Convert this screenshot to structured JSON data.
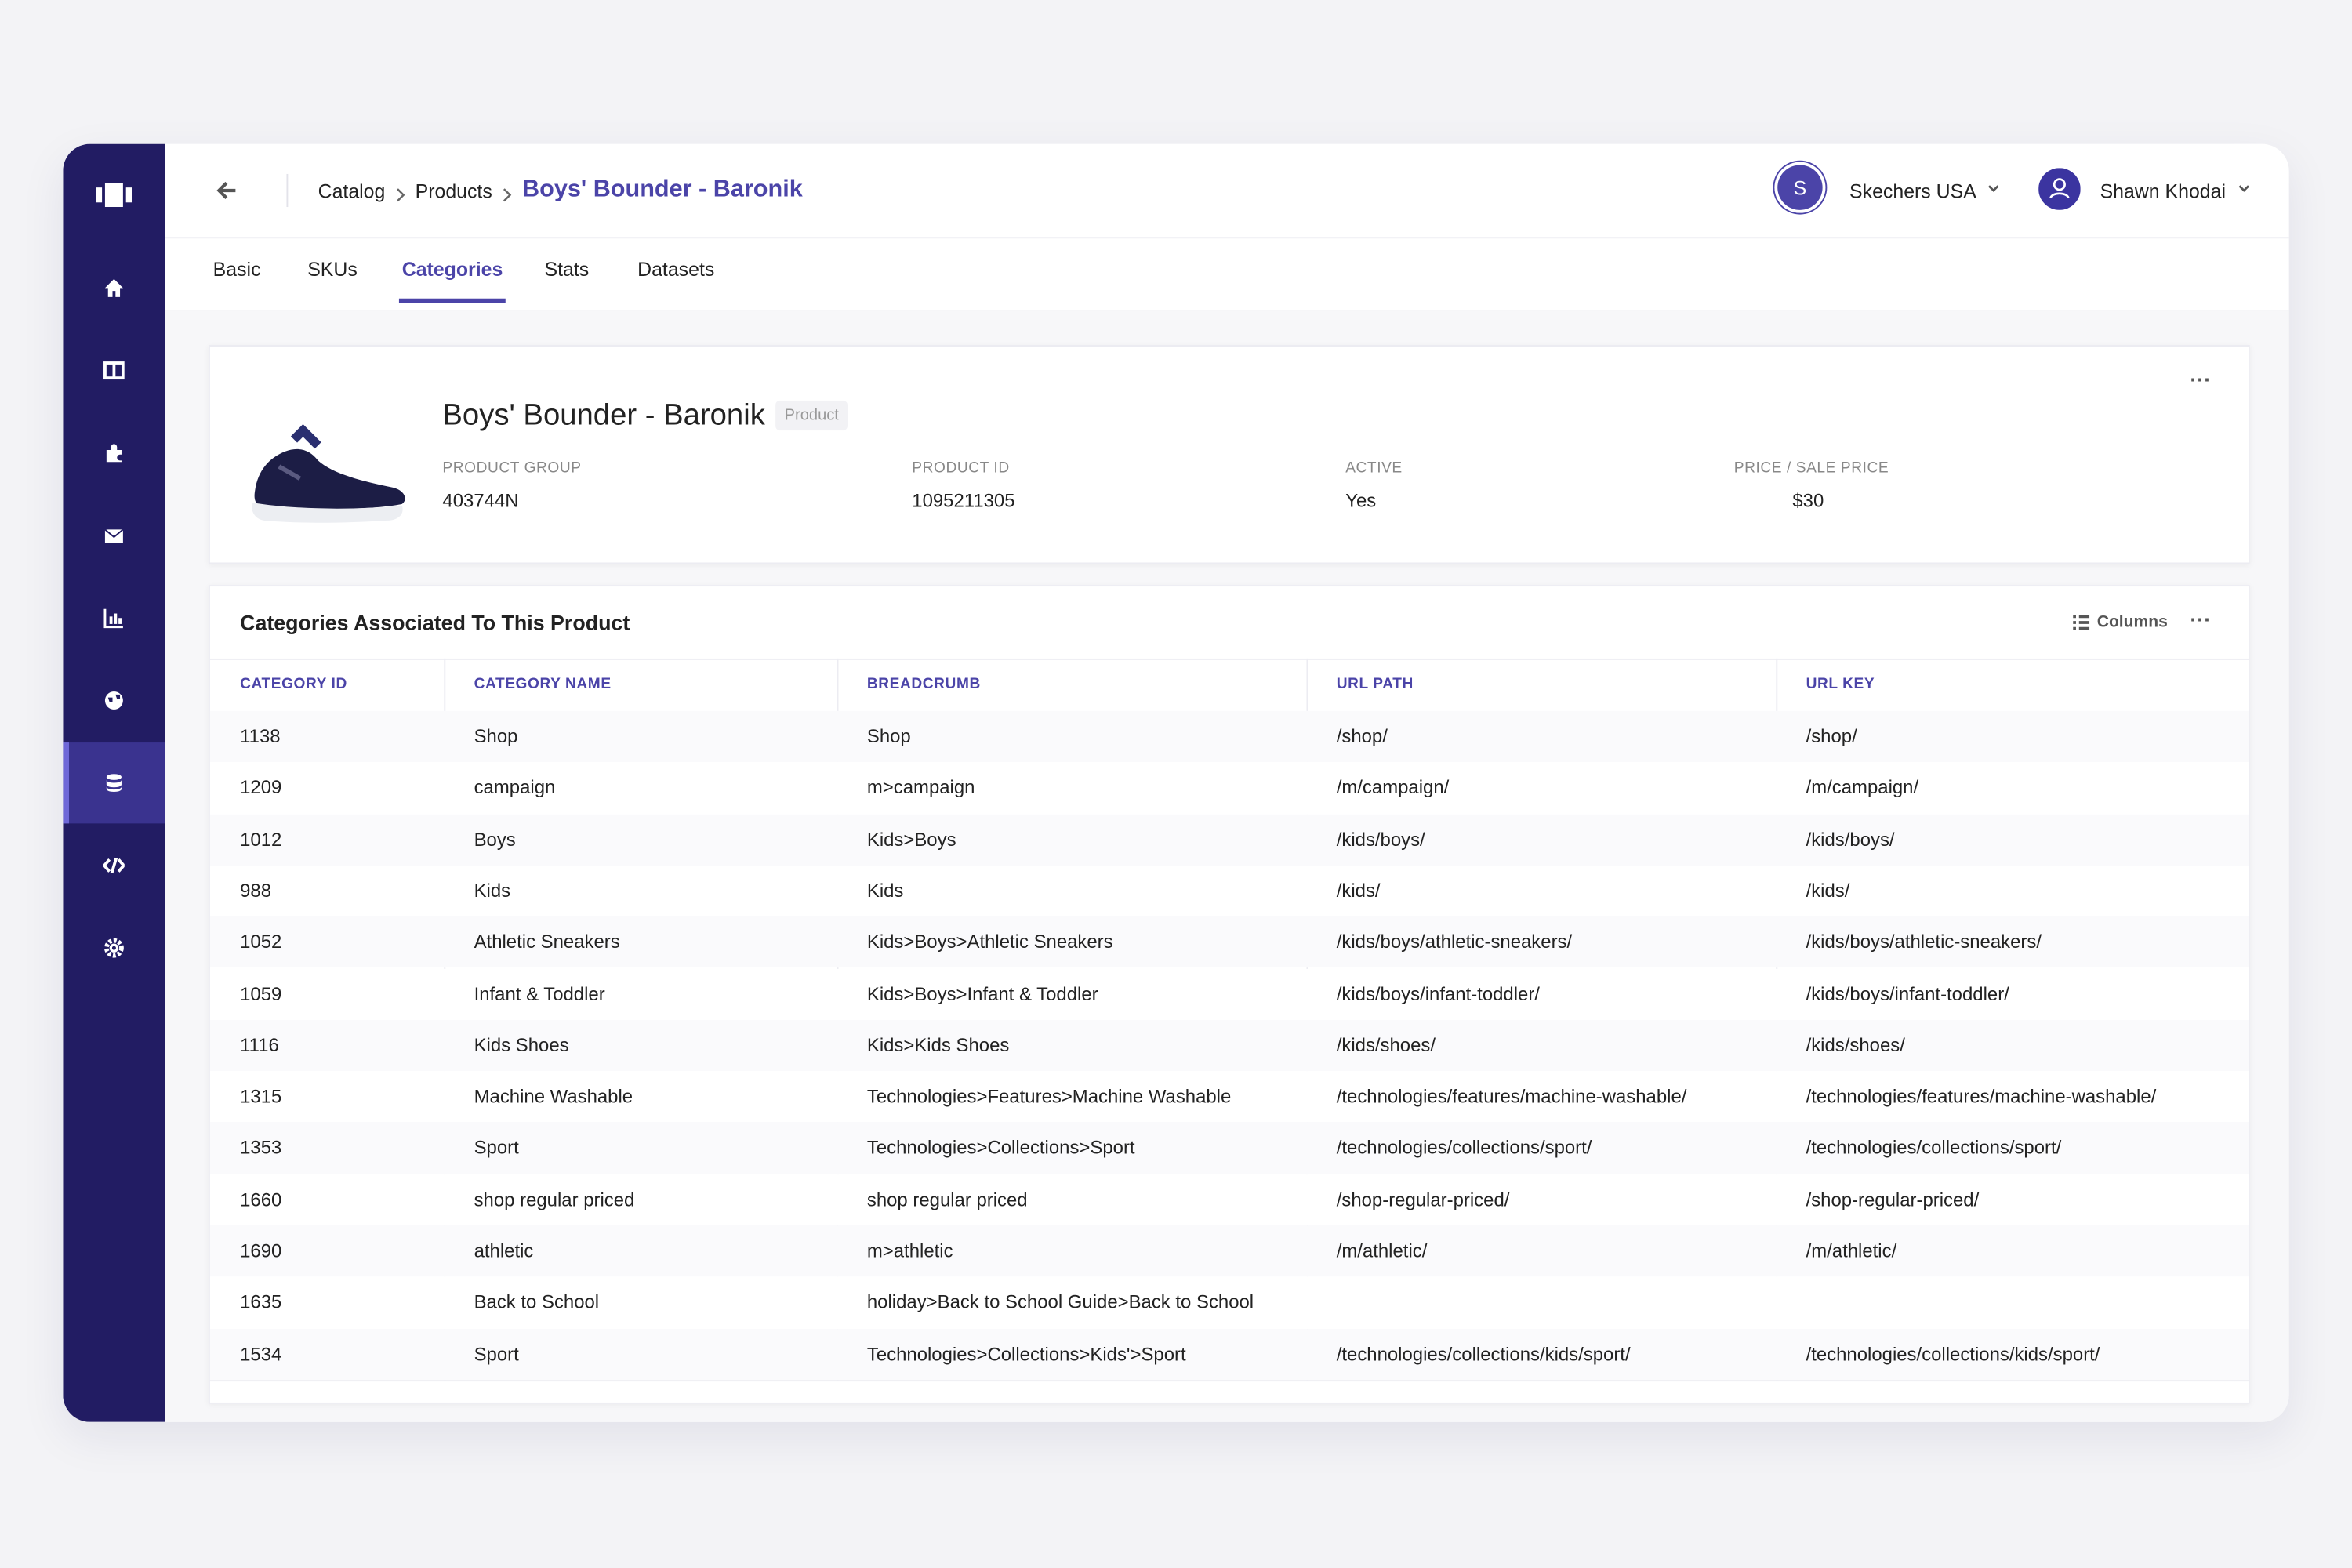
{
  "header": {
    "breadcrumb": [
      "Catalog",
      "Products"
    ],
    "title": "Boys' Bounder - Baronik",
    "org": {
      "avatar": "S",
      "name": "Skechers USA"
    },
    "user": "Shawn Khodai"
  },
  "tabs": {
    "items": [
      "Basic",
      "SKUs",
      "Categories",
      "Stats",
      "Datasets"
    ],
    "active": 2
  },
  "product": {
    "name": "Boys' Bounder - Baronik",
    "badge": "Product",
    "fields": [
      {
        "label": "PRODUCT GROUP",
        "value": "403744N"
      },
      {
        "label": "PRODUCT ID",
        "value": "1095211305"
      },
      {
        "label": "ACTIVE",
        "value": "Yes"
      },
      {
        "label": "PRICE / SALE PRICE",
        "value": "$30"
      }
    ]
  },
  "table": {
    "title": "Categories Associated To This Product",
    "columns_button": "Columns",
    "columns": [
      "CATEGORY ID",
      "CATEGORY NAME",
      "BREADCRUMB",
      "URL PATH",
      "URL KEY"
    ],
    "rows": [
      [
        "1138",
        "Shop",
        "Shop",
        "/shop/",
        "/shop/"
      ],
      [
        "1209",
        "campaign",
        "m>campaign",
        "/m/campaign/",
        "/m/campaign/"
      ],
      [
        "1012",
        "Boys",
        "Kids>Boys",
        "/kids/boys/",
        "/kids/boys/"
      ],
      [
        "988",
        "Kids",
        "Kids",
        "/kids/",
        "/kids/"
      ],
      [
        "1052",
        "Athletic Sneakers",
        "Kids>Boys>Athletic Sneakers",
        "/kids/boys/athletic-sneakers/",
        "/kids/boys/athletic-sneakers/"
      ],
      [
        "1059",
        "Infant & Toddler",
        "Kids>Boys>Infant & Toddler",
        "/kids/boys/infant-toddler/",
        "/kids/boys/infant-toddler/"
      ],
      [
        "1116",
        "Kids Shoes",
        "Kids>Kids Shoes",
        "/kids/shoes/",
        "/kids/shoes/"
      ],
      [
        "1315",
        "Machine Washable",
        "Technologies>Features>Machine Washable",
        "/technologies/features/machine-washable/",
        "/technologies/features/machine-washable/"
      ],
      [
        "1353",
        "Sport",
        "Technologies>Collections>Sport",
        "/technologies/collections/sport/",
        "/technologies/collections/sport/"
      ],
      [
        "1660",
        "shop regular priced",
        "shop regular priced",
        "/shop-regular-priced/",
        "/shop-regular-priced/"
      ],
      [
        "1690",
        "athletic",
        "m>athletic",
        "/m/athletic/",
        "/m/athletic/"
      ],
      [
        "1635",
        "Back to School",
        "holiday>Back to School Guide>Back to School",
        null,
        null
      ],
      [
        "1534",
        "Sport",
        "Technologies>Collections>Kids'>Sport",
        "/technologies/collections/kids/sport/",
        "/technologies/collections/kids/sport/"
      ]
    ]
  }
}
